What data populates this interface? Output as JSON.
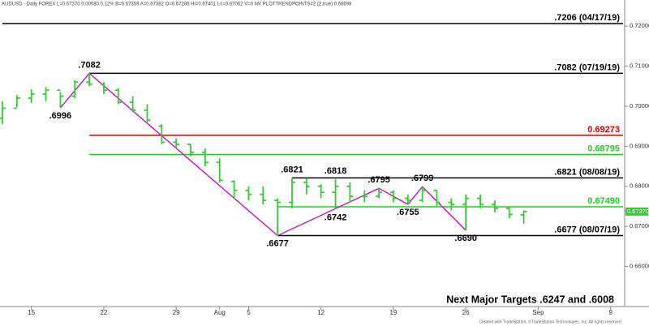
{
  "chart_data": {
    "type": "ohlc",
    "header": "AUDUSD - Daily FOREX  L=0.67370  0.00080  0.12%  B=0.67359  A=0.67382  O=0.67286  Hi=0.67401  Lo=0.67062  V=0  NV  PLOTTRENDPOINTS#2 (2,true)  0.66698",
    "footer": "Created with TradeStation. ©TradeStation Technologies, Inc. All rights reserved.",
    "note": "Next Major Targets .6247 and .6008",
    "bar_color": "#33cc33",
    "zigzag_color": "#cc00cc",
    "categories": [
      null,
      null,
      "15",
      null,
      null,
      null,
      null,
      "22",
      null,
      null,
      null,
      null,
      "29",
      null,
      null,
      "Aug",
      null,
      "5",
      null,
      null,
      null,
      null,
      "12",
      null,
      null,
      null,
      null,
      "19",
      null,
      null,
      null,
      null,
      "26",
      null,
      null,
      null,
      null,
      "Sep",
      null,
      null,
      null,
      null,
      "9"
    ],
    "open": [
      0.697,
      0.6995,
      0.702,
      0.703,
      0.704,
      0.7025,
      0.706,
      0.7055,
      0.704,
      0.701,
      0.699,
      0.695,
      0.691,
      0.6905,
      0.6885,
      0.686,
      0.6812,
      0.679,
      0.678,
      0.6765,
      0.676,
      0.681,
      0.68,
      0.6785,
      0.68,
      0.6775,
      0.6775,
      0.6785,
      0.677,
      0.6765,
      0.679,
      0.676,
      0.6755,
      0.677,
      0.6755,
      0.6745,
      0.67286,
      null,
      null,
      null,
      null,
      null,
      null
    ],
    "high": [
      0.7012,
      0.7028,
      0.7042,
      0.7048,
      0.7035,
      0.7065,
      0.7082,
      0.706,
      0.7045,
      0.7025,
      0.7005,
      0.6955,
      0.692,
      0.6905,
      0.6895,
      0.687,
      0.6815,
      0.68,
      0.68,
      0.677,
      0.6821,
      0.682,
      0.6805,
      0.6818,
      0.681,
      0.679,
      0.6795,
      0.679,
      0.678,
      0.6799,
      0.679,
      0.677,
      0.678,
      0.678,
      0.6765,
      0.675,
      0.67401,
      null,
      null,
      null,
      null,
      null,
      null
    ],
    "low": [
      0.6955,
      0.6998,
      0.7008,
      0.7012,
      0.6996,
      0.702,
      0.705,
      0.703,
      0.7005,
      0.6985,
      0.696,
      0.6905,
      0.6895,
      0.6875,
      0.685,
      0.681,
      0.677,
      0.6765,
      0.6755,
      0.6677,
      0.6745,
      0.678,
      0.677,
      0.6742,
      0.676,
      0.676,
      0.677,
      0.676,
      0.6755,
      0.676,
      0.675,
      0.674,
      0.669,
      0.6745,
      0.6735,
      0.672,
      0.67062,
      null,
      null,
      null,
      null,
      null,
      null
    ],
    "close": [
      0.6995,
      0.702,
      0.703,
      0.704,
      0.7025,
      0.706,
      0.7055,
      0.704,
      0.701,
      0.699,
      0.6965,
      0.691,
      0.6905,
      0.6885,
      0.686,
      0.6815,
      0.679,
      0.678,
      0.6765,
      0.676,
      0.681,
      0.68,
      0.6785,
      0.68,
      0.6775,
      0.6775,
      0.6785,
      0.677,
      0.6765,
      0.679,
      0.676,
      0.6755,
      0.677,
      0.6755,
      0.6745,
      0.673,
      0.6737,
      null,
      null,
      null,
      null,
      null,
      null
    ],
    "ylim": [
      0.65,
      0.7265
    ],
    "yticks": [
      {
        "value": 0.66,
        "label": "0.66000"
      },
      {
        "value": 0.67,
        "label": "0.67000"
      },
      {
        "value": 0.68,
        "label": "0.68000"
      },
      {
        "value": 0.69,
        "label": "0.69000"
      },
      {
        "value": 0.7,
        "label": "0.70000"
      },
      {
        "value": 0.71,
        "label": "0.71000"
      },
      {
        "value": 0.72,
        "label": "0.72000"
      }
    ],
    "last_price": {
      "value": 0.6737,
      "label": "0.67370",
      "color": "#33cc33"
    },
    "levels": [
      {
        "value": 0.7206,
        "label": ".7206 (04/17/19)",
        "color": "#000000",
        "from": 0
      },
      {
        "value": 0.7082,
        "label": ".7082 (07/19/19)",
        "color": "#000000",
        "from": 6
      },
      {
        "value": 0.69273,
        "label": "0.69273",
        "color": "#e00000",
        "from": 6
      },
      {
        "value": 0.68795,
        "label": "0.68795",
        "color": "#22cc22",
        "from": 6
      },
      {
        "value": 0.6821,
        "label": ".6821 (08/08/19)",
        "color": "#000000",
        "from": 20
      },
      {
        "value": 0.6749,
        "label": "0.67490",
        "color": "#22cc22",
        "from": 19
      },
      {
        "value": 0.6677,
        "label": ".6677 (08/07/19)",
        "color": "#000000",
        "from": 19
      }
    ],
    "pivots": [
      {
        "x": 6,
        "value": 0.7082,
        "label": ".7082",
        "kind": "high",
        "line": true
      },
      {
        "x": 4,
        "value": 0.6996,
        "label": ".6996",
        "kind": "low",
        "line": true
      },
      {
        "x": 20,
        "value": 0.6821,
        "label": ".6821",
        "kind": "high",
        "line": false
      },
      {
        "x": 23,
        "value": 0.6818,
        "label": ".6818",
        "kind": "high",
        "line": false
      },
      {
        "x": 26,
        "value": 0.6795,
        "label": ".6795",
        "kind": "high",
        "line": true
      },
      {
        "x": 29,
        "value": 0.6799,
        "label": ".6799",
        "kind": "high",
        "line": true
      },
      {
        "x": 23,
        "value": 0.6742,
        "label": ".6742",
        "kind": "low",
        "line": false
      },
      {
        "x": 28,
        "value": 0.6755,
        "label": ".6755",
        "kind": "low",
        "line": true
      },
      {
        "x": 19,
        "value": 0.6677,
        "label": ".6677",
        "kind": "low",
        "line": true
      },
      {
        "x": 32,
        "value": 0.669,
        "label": ".6690",
        "kind": "low",
        "line": true
      }
    ]
  }
}
